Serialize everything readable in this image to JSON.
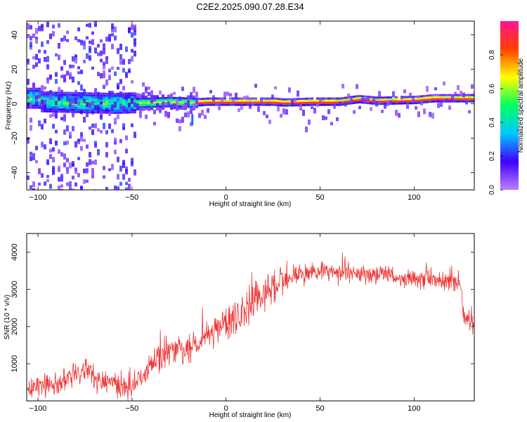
{
  "figure": {
    "title": "C2E2.2025.090.07.28.E34"
  },
  "chart_data": [
    {
      "type": "heatmap",
      "xlabel": "Height of straight line (km)",
      "ylabel": "Frequency (Hz)",
      "xlim": [
        -106,
        132
      ],
      "ylim": [
        -50,
        48
      ],
      "xticks": [
        -100,
        -50,
        0,
        50,
        100
      ],
      "yticks": [
        -40,
        -20,
        0,
        20,
        40
      ],
      "grid": false,
      "ridge_centre_hz": [
        [
          -100,
          1.0
        ],
        [
          -80,
          0.5
        ],
        [
          -60,
          0.0
        ],
        [
          -45,
          0.5
        ],
        [
          -30,
          1.0
        ],
        [
          -18,
          0.5
        ],
        [
          -10,
          1.0
        ],
        [
          0,
          1.0
        ],
        [
          25,
          1.0
        ],
        [
          30,
          0.5
        ],
        [
          45,
          1.0
        ],
        [
          60,
          1.0
        ],
        [
          70,
          2.5
        ],
        [
          80,
          1.5
        ],
        [
          100,
          2.0
        ],
        [
          110,
          3.0
        ],
        [
          132,
          3.0
        ]
      ],
      "colorbar": {
        "label": "Normalized spectral amplitude",
        "range": [
          0.0,
          1.0
        ],
        "ticks": [
          0.0,
          0.2,
          0.4,
          0.6,
          0.8
        ],
        "tick_labels": [
          "0.0",
          "0.2",
          "0.4",
          "0.6",
          "0.8"
        ],
        "colormap": [
          "#bf80ff",
          "#4000ff",
          "#00c8ff",
          "#00ff60",
          "#ffff00",
          "#ff4000",
          "#ff1490"
        ]
      }
    },
    {
      "type": "line",
      "xlabel": "Height of straight line (km)",
      "ylabel": "SNR (10 * v/v)",
      "xlim": [
        -106,
        132
      ],
      "ylim": [
        0,
        4500
      ],
      "xticks": [
        -100,
        -50,
        0,
        50,
        100
      ],
      "yticks": [
        1000,
        2000,
        3000,
        4000
      ],
      "grid": false,
      "series": [
        {
          "color": "#ee3333",
          "x": [
            -106,
            -100,
            -95,
            -90,
            -85,
            -80,
            -75,
            -70,
            -65,
            -60,
            -55,
            -50,
            -45,
            -40,
            -35,
            -30,
            -25,
            -20,
            -15,
            -10,
            -5,
            0,
            5,
            10,
            15,
            20,
            25,
            30,
            35,
            40,
            45,
            50,
            55,
            60,
            65,
            70,
            75,
            80,
            85,
            90,
            95,
            100,
            105,
            110,
            115,
            120,
            125,
            126,
            130,
            132
          ],
          "y": [
            300,
            350,
            500,
            400,
            650,
            700,
            800,
            600,
            500,
            450,
            350,
            300,
            550,
            900,
            1200,
            1300,
            1500,
            1300,
            1500,
            1800,
            1900,
            2100,
            2200,
            2500,
            2600,
            2900,
            3000,
            3100,
            3300,
            3400,
            3450,
            3500,
            3500,
            3450,
            3500,
            3400,
            3450,
            3350,
            3400,
            3350,
            3300,
            3300,
            3250,
            3250,
            3200,
            3200,
            3150,
            2300,
            2150,
            2150
          ]
        }
      ]
    }
  ]
}
